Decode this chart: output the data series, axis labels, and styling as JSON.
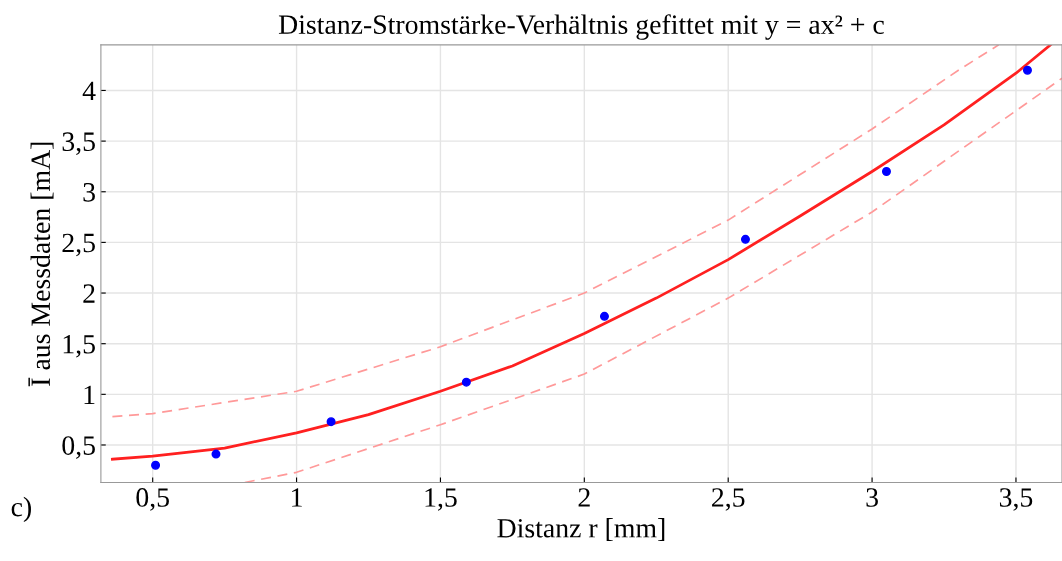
{
  "chart_data": {
    "type": "scatter",
    "title": "Distanz-Stromstärke-Verhältnis gefittet mit y = ax² + c",
    "xlabel": "Distanz r [mm]",
    "ylabel": "Ī aus Messdaten [mA]",
    "annotations": [
      "c)"
    ],
    "xlim": [
      0.32,
      3.66
    ],
    "ylim": [
      0.13,
      4.45
    ],
    "xticks": [
      {
        "value": 0.5,
        "label": "0,5"
      },
      1,
      {
        "value": 1.5,
        "label": "1,5"
      },
      2,
      {
        "value": 2.5,
        "label": "2,5"
      },
      3,
      {
        "value": 3.5,
        "label": "3,5"
      }
    ],
    "yticks": [
      {
        "value": 0.5,
        "label": "0,5"
      },
      1,
      {
        "value": 1.5,
        "label": "1,5"
      },
      2,
      {
        "value": 2.5,
        "label": "2,5"
      },
      3,
      {
        "value": 3.5,
        "label": "3,5"
      },
      4
    ],
    "grid": true,
    "series": [
      {
        "type": "line",
        "color": "#ff9999",
        "line_style": "dashed",
        "marker": "none",
        "x": [
          0.36,
          0.5,
          1,
          1.5,
          2,
          2.5,
          3,
          3.3,
          3.44
        ],
        "values": [
          0.78,
          0.81,
          1.03,
          1.47,
          2.0,
          2.72,
          3.62,
          4.2,
          4.45
        ]
      },
      {
        "type": "line",
        "color": "#ff9999",
        "line_style": "dashed",
        "marker": "none",
        "x": [
          0.82,
          1,
          1.5,
          2,
          2.5,
          3,
          3.5,
          3.66
        ],
        "values": [
          0.13,
          0.23,
          0.7,
          1.2,
          1.95,
          2.8,
          3.8,
          4.12
        ]
      },
      {
        "type": "line",
        "color": "#ff2020",
        "line_style": "solid",
        "marker": "none",
        "x": [
          0.36,
          0.5,
          0.75,
          1,
          1.25,
          1.5,
          1.75,
          2,
          2.25,
          2.5,
          2.75,
          3,
          3.25,
          3.5,
          3.62
        ],
        "values": [
          0.36,
          0.39,
          0.47,
          0.62,
          0.8,
          1.03,
          1.28,
          1.6,
          1.95,
          2.33,
          2.76,
          3.2,
          3.66,
          4.17,
          4.45
        ]
      },
      {
        "color": "#0000ff",
        "marker": "circle",
        "x": [
          0.51,
          0.72,
          1.12,
          1.59,
          2.07,
          2.56,
          3.05,
          3.54
        ],
        "values": [
          0.3,
          0.41,
          0.73,
          1.12,
          1.77,
          2.53,
          3.2,
          4.2
        ]
      }
    ]
  }
}
